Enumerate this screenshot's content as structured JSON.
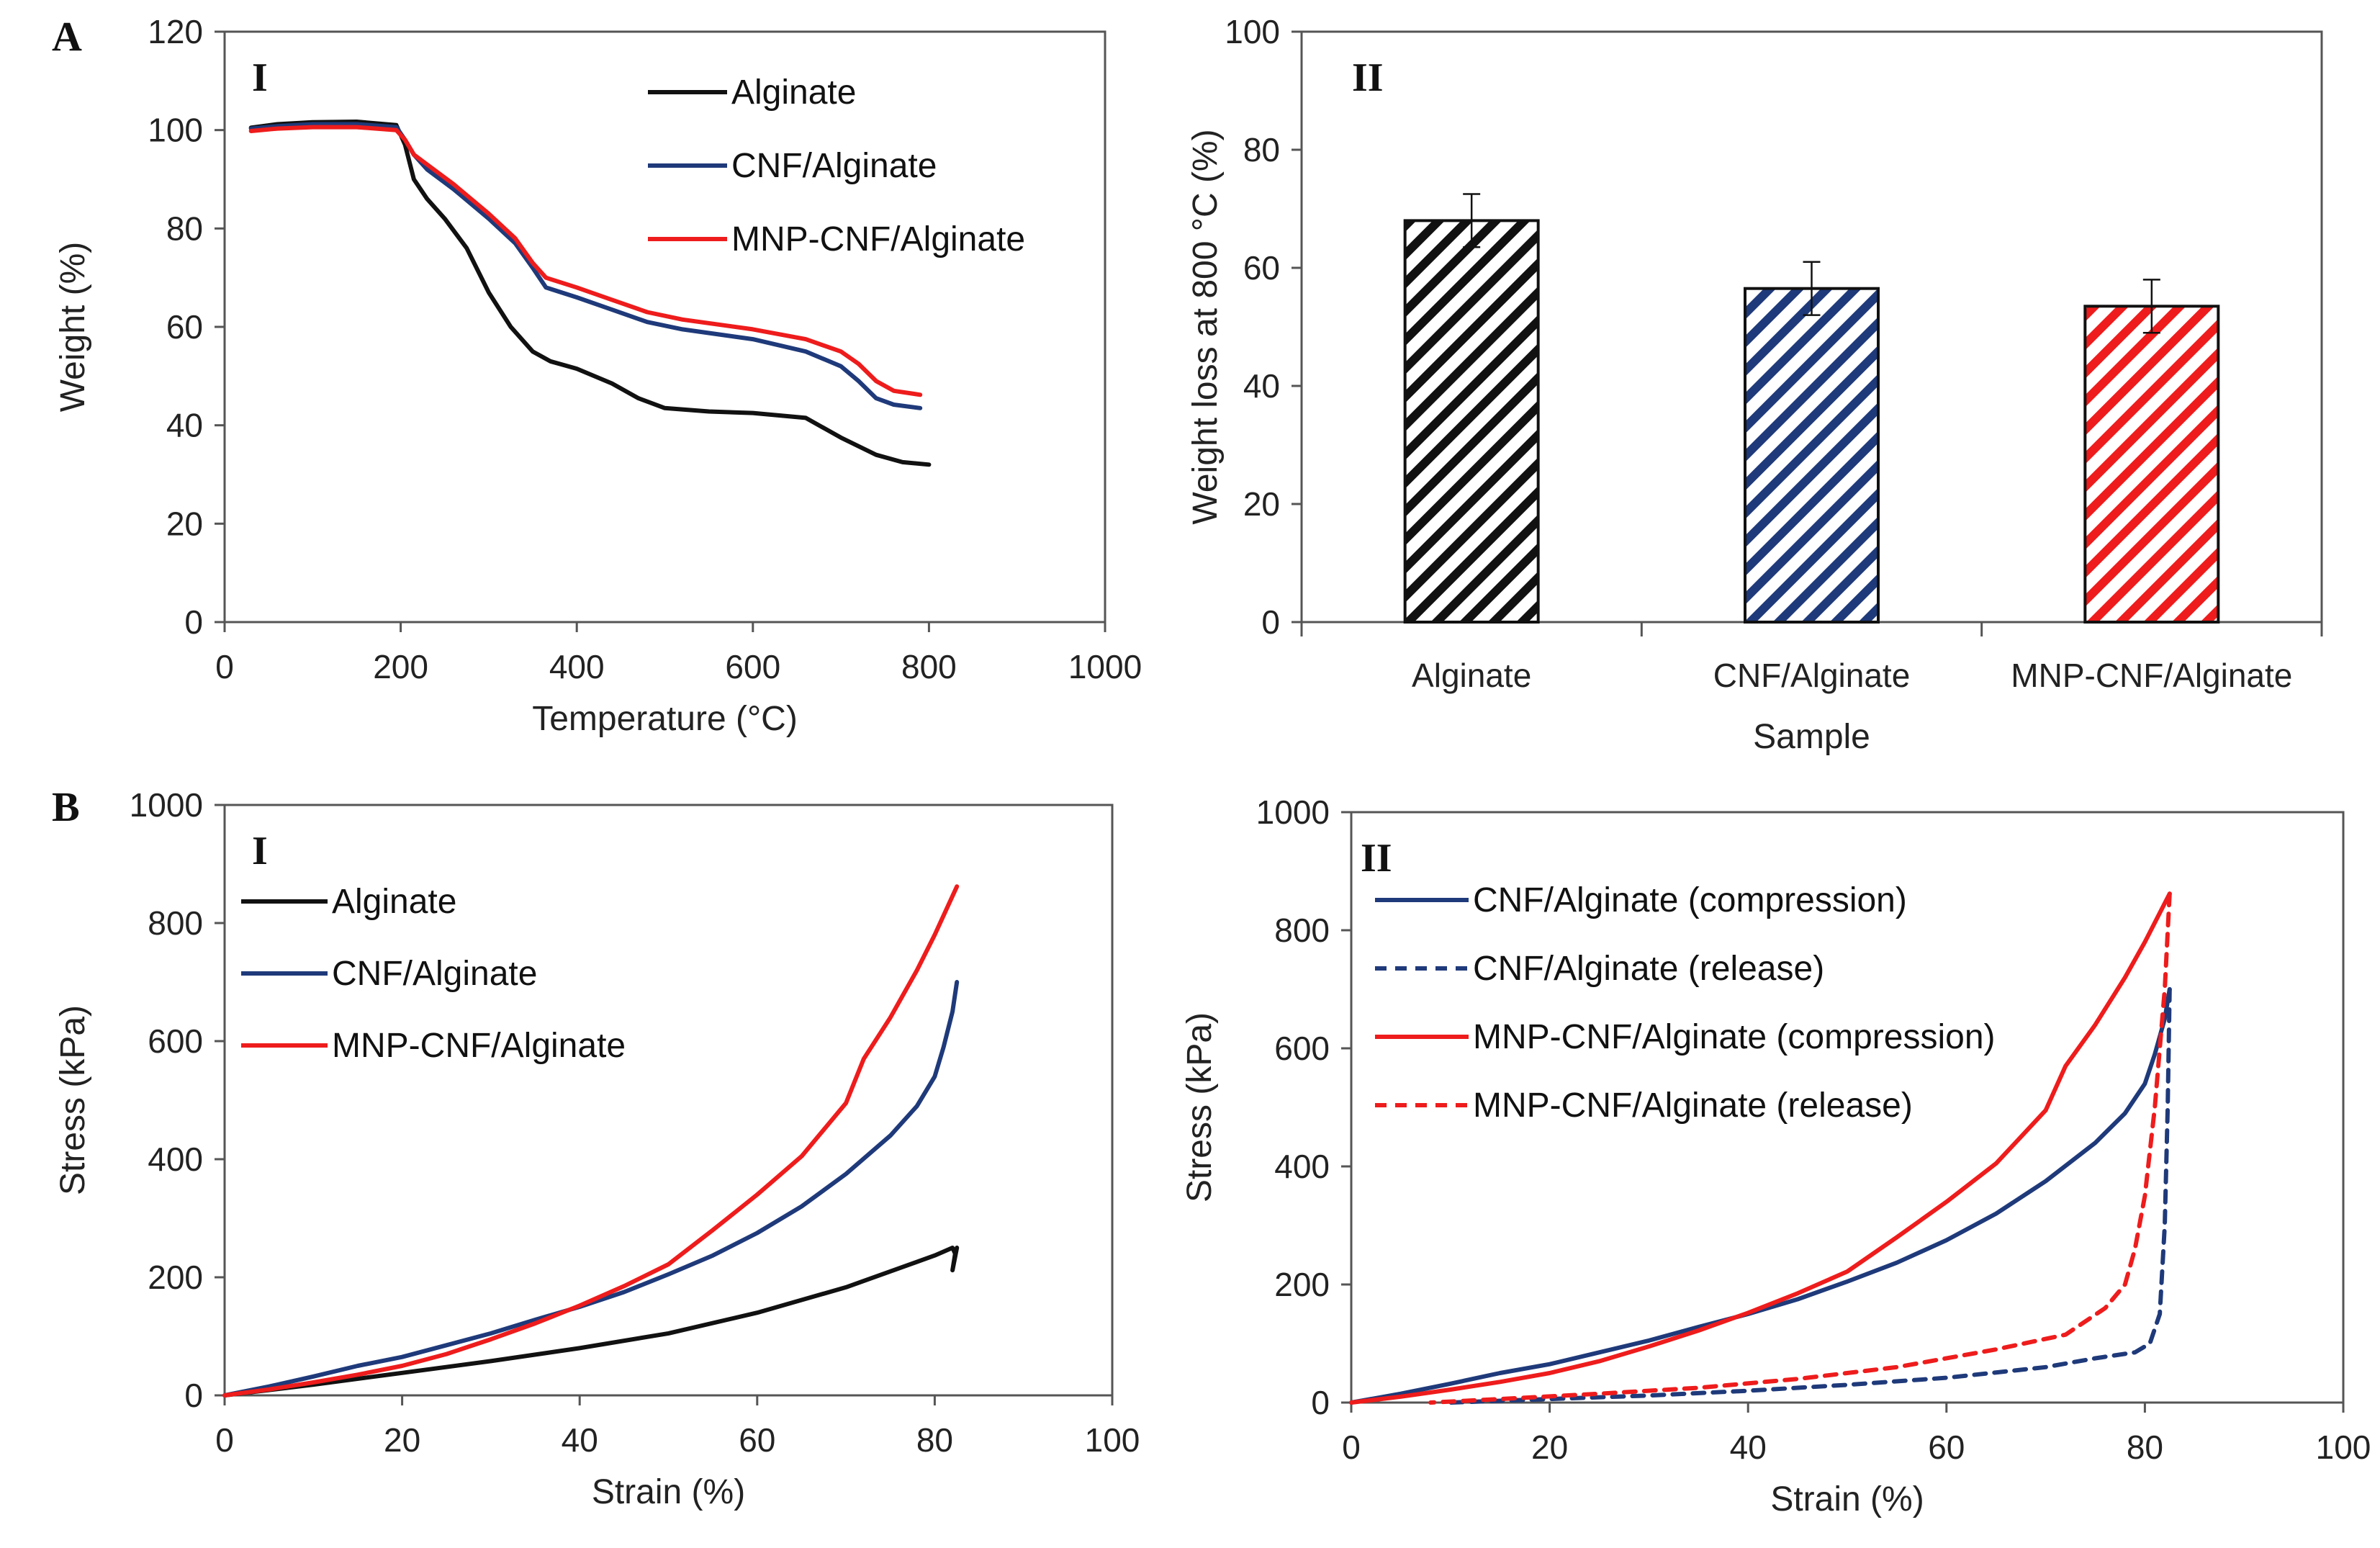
{
  "panel_labels": {
    "A": "A",
    "B": "B"
  },
  "colors": {
    "black": "#111111",
    "blue": "#1f3a7a",
    "red": "#ee1c1c"
  },
  "chart_data": [
    {
      "id": "tga",
      "type": "line",
      "panel": "I",
      "xlabel": "Temperature (°C)",
      "ylabel": "Weight (%)",
      "xlim": [
        0,
        1000
      ],
      "ylim": [
        0,
        120
      ],
      "xticks": [
        "0",
        "200",
        "400",
        "600",
        "800",
        "1000"
      ],
      "yticks": [
        "0",
        "20",
        "40",
        "60",
        "80",
        "100",
        "120"
      ],
      "legend": [
        "Alginate",
        "CNF/Alginate",
        "MNP-CNF/Alginate"
      ],
      "series": [
        {
          "name": "Alginate",
          "color": "#111111",
          "dash": false,
          "x": [
            30,
            60,
            100,
            150,
            195,
            205,
            215,
            230,
            250,
            275,
            300,
            325,
            350,
            370,
            400,
            440,
            470,
            500,
            550,
            600,
            660,
            700,
            740,
            770,
            800
          ],
          "y": [
            100.5,
            101.2,
            101.6,
            101.7,
            101.0,
            97,
            90,
            86,
            82,
            76,
            67,
            60,
            55,
            53,
            51.5,
            48.5,
            45.5,
            43.5,
            42.8,
            42.5,
            41.5,
            37.5,
            34,
            32.5,
            32
          ]
        },
        {
          "name": "CNF/Alginate",
          "color": "#1f3a7a",
          "dash": false,
          "x": [
            30,
            60,
            100,
            150,
            195,
            205,
            215,
            230,
            260,
            300,
            330,
            350,
            365,
            400,
            440,
            480,
            520,
            600,
            660,
            700,
            720,
            740,
            760,
            790
          ],
          "y": [
            100.3,
            100.8,
            101.2,
            101.2,
            100.6,
            98,
            95,
            92,
            88,
            82,
            77,
            72,
            68,
            66,
            63.5,
            61,
            59.5,
            57.5,
            55,
            52,
            49,
            45.5,
            44.2,
            43.5
          ]
        },
        {
          "name": "MNP-CNF/Alginate",
          "color": "#ee1c1c",
          "dash": false,
          "x": [
            30,
            60,
            100,
            150,
            195,
            205,
            215,
            230,
            260,
            300,
            330,
            350,
            365,
            400,
            440,
            480,
            520,
            600,
            660,
            700,
            720,
            740,
            760,
            790
          ],
          "y": [
            99.8,
            100.3,
            100.6,
            100.6,
            100.0,
            98,
            95,
            93,
            89,
            83,
            78,
            73,
            70,
            68,
            65.5,
            63,
            61.5,
            59.5,
            57.5,
            55,
            52.5,
            49,
            47,
            46.2
          ]
        }
      ]
    },
    {
      "id": "weight-loss",
      "type": "bar",
      "panel": "II",
      "xlabel": "Sample",
      "ylabel": "Weight loss at 800 °C (%)",
      "ylim": [
        0,
        100
      ],
      "yticks": [
        "0",
        "20",
        "40",
        "60",
        "80",
        "100"
      ],
      "categories": [
        "Alginate",
        "CNF/Alginate",
        "MNP-CNF/Alginate"
      ],
      "values": [
        68,
        56.5,
        53.5
      ],
      "errors": [
        4.5,
        4.5,
        4.5
      ],
      "bar_colors": [
        "#111111",
        "#1f3a7a",
        "#ee1c1c"
      ],
      "pattern": "diagonal-hatch"
    },
    {
      "id": "stress-strain",
      "type": "line",
      "panel": "I",
      "xlabel": "Strain (%)",
      "ylabel": "Stress (kPa)",
      "xlim": [
        0,
        100
      ],
      "ylim": [
        0,
        1000
      ],
      "xticks": [
        "0",
        "20",
        "40",
        "60",
        "80",
        "100"
      ],
      "yticks": [
        "0",
        "200",
        "400",
        "600",
        "800",
        "1000"
      ],
      "legend": [
        "Alginate",
        "CNF/Alginate",
        "MNP-CNF/Alginate"
      ],
      "series": [
        {
          "name": "Alginate",
          "color": "#111111",
          "dash": false,
          "x": [
            0,
            10,
            20,
            30,
            40,
            50,
            60,
            70,
            75,
            80,
            82,
            82.3,
            82.0,
            82.5
          ],
          "y": [
            0,
            18,
            38,
            58,
            80,
            105,
            140,
            183,
            210,
            237,
            250,
            240,
            212,
            250
          ]
        },
        {
          "name": "CNF/Alginate",
          "color": "#1f3a7a",
          "dash": false,
          "x": [
            0,
            5,
            10,
            15,
            20,
            25,
            30,
            35,
            40,
            45,
            50,
            55,
            60,
            65,
            70,
            75,
            78,
            80,
            81,
            82,
            82.5
          ],
          "y": [
            0,
            15,
            32,
            50,
            65,
            85,
            105,
            128,
            150,
            175,
            205,
            237,
            275,
            320,
            375,
            440,
            490,
            540,
            590,
            650,
            700
          ]
        },
        {
          "name": "MNP-CNF/Alginate",
          "color": "#ee1c1c",
          "dash": false,
          "x": [
            0,
            5,
            10,
            15,
            20,
            25,
            30,
            35,
            40,
            45,
            50,
            55,
            60,
            65,
            70,
            72,
            75,
            78,
            80,
            82.5
          ],
          "y": [
            0,
            10,
            22,
            35,
            50,
            70,
            95,
            122,
            152,
            185,
            222,
            280,
            340,
            405,
            495,
            570,
            640,
            720,
            780,
            862
          ]
        }
      ]
    },
    {
      "id": "cyclic",
      "type": "line",
      "panel": "II",
      "xlabel": "Strain (%)",
      "ylabel": "Stress (kPa)",
      "xlim": [
        0,
        100
      ],
      "ylim": [
        0,
        1000
      ],
      "xticks": [
        "0",
        "20",
        "40",
        "60",
        "80",
        "100"
      ],
      "yticks": [
        "0",
        "200",
        "400",
        "600",
        "800",
        "1000"
      ],
      "legend": [
        "CNF/Alginate (compression)",
        "CNF/Alginate (release)",
        "MNP-CNF/Alginate (compression)",
        "MNP-CNF/Alginate (release)"
      ],
      "series": [
        {
          "name": "CNF/Alginate (compression)",
          "color": "#1f3a7a",
          "dash": false,
          "x": [
            0,
            5,
            10,
            15,
            20,
            25,
            30,
            35,
            40,
            45,
            50,
            55,
            60,
            65,
            70,
            75,
            78,
            80,
            81,
            82,
            82.5
          ],
          "y": [
            0,
            15,
            32,
            50,
            65,
            85,
            105,
            128,
            150,
            175,
            205,
            237,
            275,
            320,
            375,
            440,
            490,
            540,
            590,
            650,
            700
          ]
        },
        {
          "name": "CNF/Alginate (release)",
          "color": "#1f3a7a",
          "dash": true,
          "x": [
            82.5,
            82.3,
            82.0,
            81.5,
            80.5,
            79,
            75,
            70,
            60,
            50,
            40,
            30,
            20,
            10
          ],
          "y": [
            700,
            500,
            300,
            150,
            100,
            85,
            75,
            60,
            42,
            30,
            20,
            12,
            6,
            0
          ]
        },
        {
          "name": "MNP-CNF/Alginate (compression)",
          "color": "#ee1c1c",
          "dash": false,
          "x": [
            0,
            5,
            10,
            15,
            20,
            25,
            30,
            35,
            40,
            45,
            50,
            55,
            60,
            65,
            70,
            72,
            75,
            78,
            80,
            82.5
          ],
          "y": [
            0,
            10,
            22,
            35,
            50,
            70,
            95,
            122,
            152,
            185,
            222,
            280,
            340,
            405,
            495,
            570,
            640,
            720,
            780,
            862
          ]
        },
        {
          "name": "MNP-CNF/Alginate (release)",
          "color": "#ee1c1c",
          "dash": true,
          "x": [
            82.5,
            82.0,
            81.0,
            80.0,
            79.0,
            78.0,
            76.0,
            72.0,
            65,
            55,
            45,
            35,
            25,
            15,
            8
          ],
          "y": [
            862,
            700,
            500,
            350,
            260,
            200,
            160,
            115,
            90,
            60,
            40,
            25,
            15,
            6,
            0
          ]
        }
      ]
    }
  ]
}
